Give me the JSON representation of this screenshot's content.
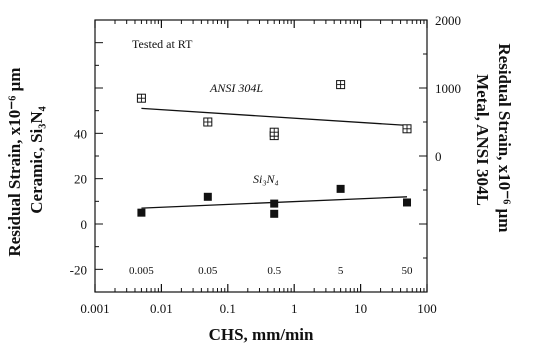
{
  "chart_data": {
    "type": "scatter",
    "title": "",
    "xlabel": "CHS, mm/min",
    "ylabel_left": "Residual Strain, x10⁻⁶ μm Ceramic, Si₃N₄",
    "ylabel_left_lines": [
      "Residual Strain, x10⁻⁶ μm",
      "Ceramic, Si₃N₄"
    ],
    "ylabel_right": "Residual Strain, x10⁻⁶ μm Metal, ANSI 304L",
    "ylabel_right_lines": [
      "Residual Strain, x10⁻⁶ μm",
      "Metal, ANSI 304L"
    ],
    "annotation": "Tested at RT",
    "x_scale": "log",
    "xlim": [
      0.001,
      100
    ],
    "x_ticks": [
      0.001,
      0.01,
      0.1,
      1,
      10,
      100
    ],
    "x_tick_labels": [
      "0.001",
      "0.01",
      "0.1",
      "1",
      "10",
      "100"
    ],
    "ylim_left": [
      -30,
      90
    ],
    "y_ticks_left": [
      -20,
      0,
      20,
      40
    ],
    "y_tick_labels_left": [
      "-20",
      "0",
      "20",
      "40"
    ],
    "ylim_right": [
      -2000,
      2000
    ],
    "y_ticks_right": [
      0,
      1000,
      2000
    ],
    "y_tick_labels_right": [
      "0",
      "1000",
      "2000"
    ],
    "inner_labels": [
      "0.005",
      "0.05",
      "0.5",
      "5",
      "50"
    ],
    "inner_label_x": [
      0.005,
      0.05,
      0.5,
      5,
      50
    ],
    "grid": false,
    "series": [
      {
        "name": "ANSI 304L",
        "axis": "right",
        "marker": "open-square-cross",
        "x": [
          0.005,
          0.05,
          0.5,
          0.5,
          5,
          50
        ],
        "y": [
          850,
          500,
          300,
          350,
          1050,
          400
        ],
        "fit": {
          "x": [
            0.005,
            50
          ],
          "y": [
            700,
            450
          ]
        }
      },
      {
        "name": "Si₃N₄",
        "axis": "left",
        "marker": "filled-square",
        "x": [
          0.005,
          0.05,
          0.5,
          0.5,
          5,
          50
        ],
        "y": [
          5,
          12,
          4.5,
          9,
          15.5,
          9.5
        ],
        "fit": {
          "x": [
            0.005,
            50
          ],
          "y": [
            7,
            12
          ]
        }
      }
    ]
  }
}
